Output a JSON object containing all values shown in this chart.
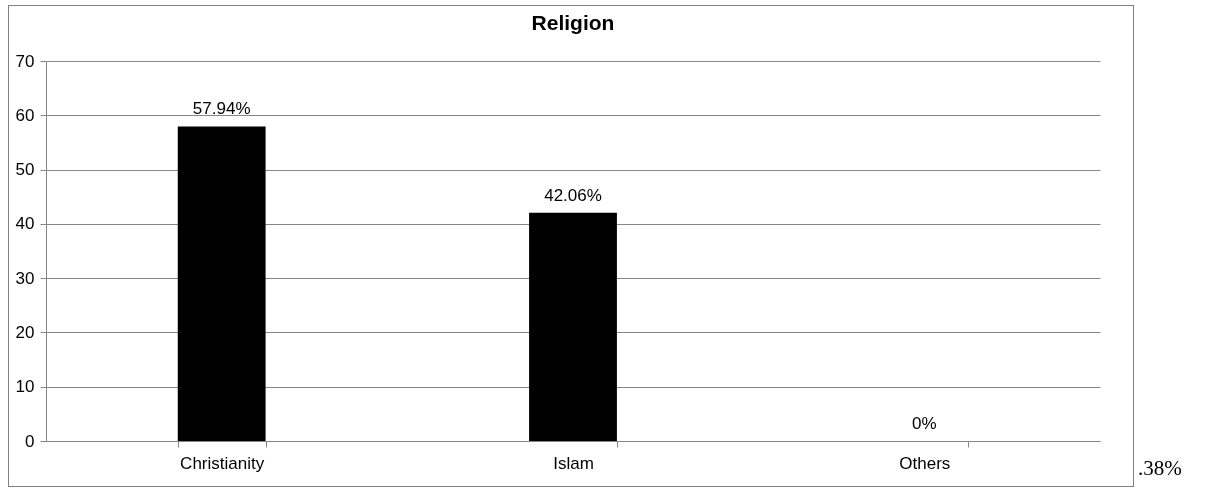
{
  "chart_data": {
    "type": "bar",
    "title": "Religion",
    "categories": [
      "Christianity",
      "Islam",
      "Others"
    ],
    "values": [
      57.94,
      42.06,
      0
    ],
    "value_labels": [
      "57.94%",
      "42.06%",
      "0%"
    ],
    "color": "#000000",
    "ylim": [
      0,
      70
    ],
    "yticks": [
      0,
      10,
      20,
      30,
      40,
      50,
      60,
      70
    ],
    "grid": "y",
    "annotations": [
      ".38%"
    ]
  }
}
